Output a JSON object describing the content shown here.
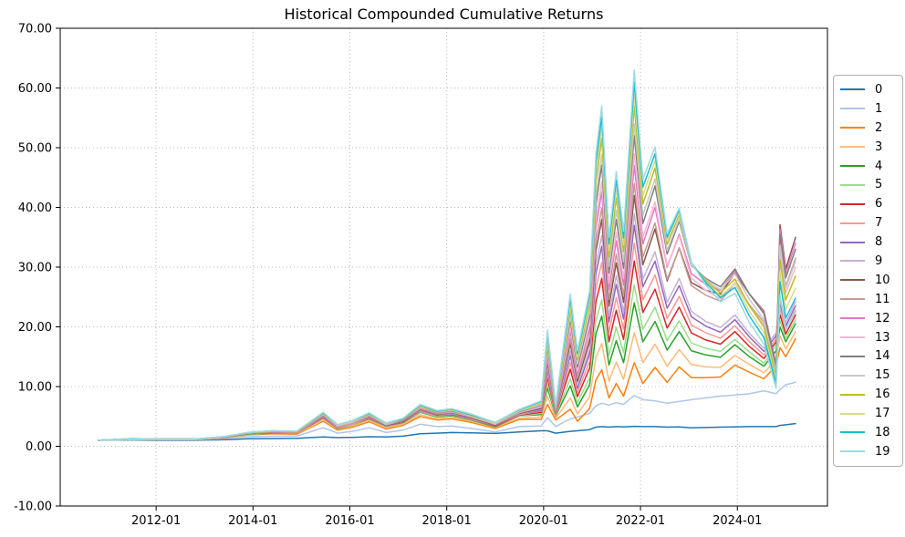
{
  "figure": {
    "background": "#ffffff"
  },
  "chart_data": {
    "type": "line",
    "title": "Historical Compounded Cumulative Returns",
    "xlabel": "",
    "ylabel": "",
    "grid": "dotted both axes",
    "legend_position": "right outside",
    "x_axis": {
      "range_years": [
        2010.02,
        2025.86
      ],
      "ticks_years": [
        2012.0,
        2014.0,
        2016.0,
        2018.0,
        2020.0,
        2022.0,
        2024.0
      ],
      "tick_labels": [
        "2012-01",
        "2014-01",
        "2016-01",
        "2018-01",
        "2020-01",
        "2022-01",
        "2024-01"
      ]
    },
    "y_axis": {
      "range": [
        -10,
        70
      ],
      "ticks": [
        -10,
        0,
        10,
        20,
        30,
        40,
        50,
        60,
        70
      ],
      "tick_labels": [
        "-10.00",
        "0.00",
        "10.00",
        "20.00",
        "30.00",
        "40.00",
        "50.00",
        "60.00",
        "70.00"
      ]
    },
    "x_labels": [
      "2010-10",
      "2011-07",
      "2012-01",
      "2012-10",
      "2013-05",
      "2013-11",
      "2014-05",
      "2014-11",
      "2015-06",
      "2015-10",
      "2016-01",
      "2016-05",
      "2016-10",
      "2017-02",
      "2017-06",
      "2017-10",
      "2018-02",
      "2018-07",
      "2019-01",
      "2019-07",
      "2019-12",
      "2020-02",
      "2020-04",
      "2020-07",
      "2020-09",
      "2020-12",
      "2021-02",
      "2021-03",
      "2021-05",
      "2021-07",
      "2021-08",
      "2021-11",
      "2022-01",
      "2022-04",
      "2022-07",
      "2022-10",
      "2023-01",
      "2023-05",
      "2023-08",
      "2023-12",
      "2024-04",
      "2024-07",
      "2024-10",
      "2024-11",
      "2025-01",
      "2025-03"
    ],
    "x": [
      2010.8,
      2011.5,
      2012.0,
      2012.8,
      2013.4,
      2013.9,
      2014.4,
      2014.9,
      2015.45,
      2015.75,
      2016.05,
      2016.4,
      2016.75,
      2017.1,
      2017.45,
      2017.8,
      2018.1,
      2018.5,
      2019.0,
      2019.5,
      2019.95,
      2020.08,
      2020.25,
      2020.55,
      2020.7,
      2020.95,
      2021.08,
      2021.2,
      2021.35,
      2021.5,
      2021.65,
      2021.87,
      2022.05,
      2022.3,
      2022.55,
      2022.8,
      2023.05,
      2023.35,
      2023.65,
      2023.95,
      2024.25,
      2024.55,
      2024.8,
      2024.88,
      2025.0,
      2025.2
    ],
    "series": [
      {
        "name": "0",
        "color": "#1f77b4",
        "values": [
          1.0,
          1.05,
          1.0,
          1.0,
          1.1,
          1.25,
          1.3,
          1.35,
          1.55,
          1.45,
          1.5,
          1.6,
          1.55,
          1.7,
          2.1,
          2.2,
          2.3,
          2.25,
          2.15,
          2.4,
          2.6,
          2.6,
          2.2,
          2.5,
          2.6,
          2.8,
          3.2,
          3.3,
          3.2,
          3.3,
          3.25,
          3.35,
          3.3,
          3.3,
          3.2,
          3.25,
          3.1,
          3.15,
          3.2,
          3.25,
          3.3,
          3.3,
          3.3,
          3.5,
          3.6,
          3.8
        ]
      },
      {
        "name": "1",
        "color": "#aec7e8",
        "values": [
          1.0,
          1.1,
          1.1,
          1.1,
          1.3,
          1.6,
          1.7,
          1.7,
          3.1,
          2.2,
          2.5,
          3.1,
          2.3,
          2.7,
          3.7,
          3.3,
          3.4,
          3.0,
          2.4,
          3.3,
          3.4,
          4.8,
          3.3,
          4.6,
          4.9,
          5.5,
          6.8,
          7.2,
          6.9,
          7.3,
          7.0,
          8.5,
          7.8,
          7.6,
          7.2,
          7.5,
          7.8,
          8.1,
          8.4,
          8.6,
          8.8,
          9.3,
          8.8,
          9.5,
          10.3,
          10.7
        ]
      },
      {
        "name": "2",
        "color": "#ff7f0e",
        "values": [
          1.0,
          1.2,
          1.1,
          1.1,
          1.4,
          1.9,
          2.1,
          2.0,
          4.2,
          2.7,
          3.2,
          4.1,
          2.9,
          3.5,
          5.0,
          4.4,
          4.6,
          4.0,
          3.0,
          4.5,
          4.5,
          7.0,
          4.4,
          6.2,
          4.2,
          6.3,
          11.1,
          12.8,
          8.1,
          10.5,
          8.4,
          14.0,
          10.5,
          13.2,
          10.7,
          13.3,
          11.5,
          11.5,
          11.6,
          13.6,
          12.4,
          11.3,
          13.5,
          16.5,
          15.0,
          18.0
        ]
      },
      {
        "name": "3",
        "color": "#ffbb78",
        "values": [
          1.0,
          1.2,
          1.1,
          1.1,
          1.4,
          1.9,
          2.2,
          2.1,
          4.4,
          2.9,
          3.4,
          4.3,
          3.1,
          3.7,
          5.3,
          4.6,
          4.8,
          4.2,
          3.2,
          4.7,
          4.9,
          8.4,
          4.7,
          8.1,
          5.4,
          8.3,
          14.9,
          17.2,
          10.9,
          14.1,
          11.2,
          19.0,
          14.0,
          17.1,
          13.4,
          16.2,
          13.7,
          13.3,
          13.2,
          15.2,
          13.7,
          12.3,
          14.5,
          18.5,
          16.3,
          19.2
        ]
      },
      {
        "name": "4",
        "color": "#2ca02c",
        "values": [
          1.0,
          1.2,
          1.2,
          1.2,
          1.5,
          2.0,
          2.2,
          2.2,
          4.7,
          3.0,
          3.6,
          4.6,
          3.3,
          3.9,
          5.7,
          4.9,
          5.1,
          4.4,
          3.3,
          5.1,
          5.3,
          9.8,
          5.1,
          10.1,
          6.6,
          10.3,
          18.8,
          21.8,
          13.6,
          17.7,
          14.0,
          24.0,
          17.5,
          20.9,
          16.1,
          19.2,
          16.0,
          15.3,
          14.9,
          17.0,
          15.0,
          13.4,
          16.0,
          20.0,
          17.5,
          20.5
        ]
      },
      {
        "name": "5",
        "color": "#98df8a",
        "values": [
          1.0,
          1.2,
          1.2,
          1.2,
          1.5,
          2.0,
          2.3,
          2.2,
          4.7,
          3.1,
          3.6,
          4.7,
          3.3,
          3.9,
          5.8,
          5.0,
          5.2,
          4.5,
          3.4,
          5.1,
          5.5,
          10.5,
          5.2,
          11.3,
          7.3,
          11.5,
          21.1,
          24.5,
          15.2,
          19.9,
          15.7,
          27.0,
          19.6,
          23.3,
          17.7,
          21.0,
          17.3,
          16.4,
          15.9,
          17.9,
          15.8,
          13.9,
          17.0,
          21.0,
          18.1,
          21.2
        ]
      },
      {
        "name": "6",
        "color": "#d62728",
        "values": [
          1.0,
          1.2,
          1.2,
          1.2,
          1.5,
          2.1,
          2.3,
          2.2,
          4.8,
          3.1,
          3.7,
          4.7,
          3.4,
          4.0,
          5.9,
          5.1,
          5.3,
          4.6,
          3.4,
          5.2,
          5.7,
          11.5,
          5.4,
          12.9,
          8.3,
          13.1,
          24.2,
          28.1,
          17.5,
          22.8,
          17.9,
          31.0,
          22.4,
          26.3,
          19.8,
          23.3,
          19.0,
          17.8,
          17.1,
          19.2,
          16.7,
          14.7,
          17.5,
          22.0,
          18.8,
          22.0
        ]
      },
      {
        "name": "7",
        "color": "#ff9896",
        "values": [
          1.0,
          1.2,
          1.2,
          1.2,
          1.5,
          2.1,
          2.3,
          2.2,
          4.9,
          3.1,
          3.7,
          4.8,
          3.4,
          4.1,
          5.9,
          5.1,
          5.4,
          4.6,
          3.5,
          5.3,
          5.9,
          12.2,
          5.5,
          14.0,
          9.0,
          14.3,
          26.5,
          30.8,
          19.1,
          24.9,
          19.6,
          34.0,
          24.5,
          28.7,
          21.4,
          25.1,
          20.3,
          19.0,
          18.1,
          20.2,
          17.5,
          15.3,
          18.0,
          23.0,
          19.5,
          22.8
        ]
      },
      {
        "name": "8",
        "color": "#9467bd",
        "values": [
          1.0,
          1.2,
          1.2,
          1.2,
          1.5,
          2.1,
          2.3,
          2.3,
          4.9,
          3.2,
          3.8,
          4.9,
          3.4,
          4.1,
          6.0,
          5.2,
          5.4,
          4.7,
          3.5,
          5.4,
          6.0,
          12.9,
          5.6,
          15.2,
          9.7,
          15.5,
          28.9,
          33.5,
          20.8,
          27.1,
          21.3,
          37.0,
          26.7,
          31.0,
          23.1,
          26.9,
          21.7,
          20.1,
          19.1,
          21.2,
          18.3,
          15.9,
          18.5,
          24.0,
          20.1,
          23.5
        ]
      },
      {
        "name": "9",
        "color": "#c5b0d5",
        "values": [
          1.0,
          1.2,
          1.2,
          1.2,
          1.5,
          2.1,
          2.4,
          2.3,
          5.0,
          3.2,
          3.8,
          4.9,
          3.5,
          4.2,
          6.1,
          5.3,
          5.5,
          4.8,
          3.6,
          5.4,
          6.2,
          13.5,
          5.8,
          16.0,
          10.2,
          16.3,
          30.4,
          35.3,
          21.8,
          28.6,
          22.5,
          39.0,
          28.0,
          32.6,
          24.1,
          28.1,
          22.6,
          20.9,
          19.9,
          22.0,
          18.9,
          16.4,
          19.0,
          24.8,
          20.7,
          24.2
        ]
      },
      {
        "name": "10",
        "color": "#8c564b",
        "values": [
          1.0,
          1.2,
          1.2,
          1.2,
          1.5,
          2.1,
          2.4,
          2.3,
          5.1,
          3.3,
          3.9,
          5.0,
          3.5,
          4.2,
          6.2,
          5.3,
          5.6,
          4.8,
          3.6,
          5.5,
          6.3,
          14.2,
          5.9,
          17.2,
          10.9,
          17.5,
          32.7,
          38.0,
          23.5,
          30.7,
          24.1,
          42.0,
          30.4,
          36.4,
          27.7,
          33.2,
          27.4,
          26.1,
          25.5,
          29.0,
          25.5,
          22.6,
          13.6,
          37.1,
          29.7,
          35.0
        ]
      },
      {
        "name": "11",
        "color": "#c49c94",
        "values": [
          1.0,
          1.2,
          1.2,
          1.2,
          1.5,
          2.2,
          2.4,
          2.3,
          5.2,
          3.3,
          3.9,
          5.1,
          3.6,
          4.3,
          6.3,
          5.4,
          5.7,
          4.9,
          3.7,
          5.6,
          6.5,
          14.7,
          6.0,
          18.0,
          11.4,
          18.4,
          34.3,
          39.9,
          24.6,
          32.2,
          25.3,
          44.0,
          31.7,
          37.4,
          28.0,
          33.1,
          26.9,
          25.3,
          24.3,
          27.3,
          23.7,
          20.8,
          12.4,
          33.7,
          26.8,
          31.5
        ]
      },
      {
        "name": "12",
        "color": "#e377c2",
        "values": [
          1.0,
          1.2,
          1.2,
          1.2,
          1.5,
          2.2,
          2.4,
          2.3,
          5.2,
          3.3,
          4.0,
          5.1,
          3.6,
          4.3,
          6.4,
          5.5,
          5.8,
          5.0,
          3.7,
          5.7,
          6.6,
          15.4,
          6.1,
          19.2,
          12.1,
          19.6,
          36.6,
          42.6,
          26.2,
          34.4,
          27.0,
          47.0,
          33.9,
          40.0,
          30.0,
          35.5,
          28.9,
          27.1,
          26.1,
          29.4,
          25.5,
          22.4,
          13.3,
          36.3,
          29.0,
          34.0
        ]
      },
      {
        "name": "13",
        "color": "#f7b6d2",
        "values": [
          1.0,
          1.2,
          1.2,
          1.2,
          1.6,
          2.2,
          2.5,
          2.4,
          5.3,
          3.4,
          4.0,
          5.2,
          3.6,
          4.4,
          6.5,
          5.6,
          5.8,
          5.0,
          3.7,
          5.7,
          6.7,
          15.9,
          6.2,
          20.0,
          12.6,
          20.4,
          38.2,
          44.3,
          27.3,
          35.8,
          28.1,
          49.0,
          35.1,
          40.9,
          30.2,
          35.2,
          28.2,
          26.1,
          24.7,
          27.4,
          23.5,
          20.3,
          12.0,
          32.3,
          25.7,
          30.0
        ]
      },
      {
        "name": "14",
        "color": "#7f7f7f",
        "values": [
          1.0,
          1.2,
          1.2,
          1.2,
          1.6,
          2.2,
          2.5,
          2.4,
          5.4,
          3.4,
          4.1,
          5.3,
          3.7,
          4.4,
          6.6,
          5.6,
          5.9,
          5.1,
          3.8,
          5.8,
          6.9,
          16.7,
          6.3,
          21.2,
          13.3,
          21.6,
          40.5,
          47.1,
          29.0,
          38.0,
          29.8,
          52.0,
          37.3,
          43.6,
          32.2,
          37.7,
          30.3,
          28.1,
          26.7,
          29.7,
          25.5,
          22.2,
          13.1,
          35.5,
          28.2,
          33.0
        ]
      },
      {
        "name": "15",
        "color": "#c7c7c7",
        "values": [
          1.0,
          1.2,
          1.2,
          1.2,
          1.6,
          2.2,
          2.5,
          2.4,
          5.4,
          3.4,
          4.1,
          5.3,
          3.7,
          4.5,
          6.6,
          5.7,
          6.0,
          5.1,
          3.8,
          5.9,
          7.0,
          17.2,
          6.4,
          21.9,
          13.8,
          22.4,
          42.0,
          48.9,
          30.1,
          39.5,
          30.9,
          54.0,
          38.7,
          44.8,
          32.8,
          38.1,
          30.4,
          27.9,
          26.2,
          28.9,
          24.6,
          21.2,
          12.4,
          33.6,
          26.5,
          31.0
        ]
      },
      {
        "name": "16",
        "color": "#bcbd22",
        "values": [
          1.0,
          1.2,
          1.2,
          1.2,
          1.6,
          2.2,
          2.5,
          2.4,
          5.5,
          3.5,
          4.2,
          5.4,
          3.8,
          4.5,
          6.7,
          5.8,
          6.1,
          5.2,
          3.9,
          6.0,
          7.2,
          17.9,
          6.6,
          23.1,
          14.5,
          23.6,
          44.3,
          51.6,
          31.7,
          41.6,
          32.6,
          57.0,
          40.6,
          46.6,
          33.8,
          38.8,
          30.6,
          27.7,
          25.7,
          28.0,
          23.5,
          20.0,
          11.6,
          31.2,
          24.5,
          28.5
        ]
      },
      {
        "name": "17",
        "color": "#dbdb8d",
        "values": [
          1.0,
          1.2,
          1.2,
          1.2,
          1.6,
          2.3,
          2.6,
          2.5,
          5.6,
          3.5,
          4.2,
          5.5,
          3.8,
          4.6,
          6.8,
          5.9,
          6.1,
          5.3,
          3.9,
          6.0,
          7.3,
          18.5,
          6.7,
          23.9,
          15.0,
          24.4,
          45.9,
          53.4,
          32.8,
          43.1,
          33.7,
          59.0,
          42.0,
          47.8,
          34.4,
          39.1,
          30.6,
          27.5,
          25.2,
          27.2,
          22.6,
          19.0,
          11.0,
          29.2,
          22.9,
          26.5
        ]
      },
      {
        "name": "18",
        "color": "#17becf",
        "values": [
          1.0,
          1.3,
          1.2,
          1.2,
          1.6,
          2.3,
          2.6,
          2.5,
          5.6,
          3.6,
          4.3,
          5.5,
          3.9,
          4.6,
          6.9,
          5.9,
          6.2,
          5.3,
          4.0,
          6.1,
          7.5,
          19.0,
          6.8,
          24.7,
          15.5,
          25.2,
          47.5,
          55.2,
          33.9,
          44.6,
          34.9,
          61.0,
          43.4,
          49.0,
          35.0,
          39.6,
          30.8,
          27.4,
          24.9,
          26.6,
          21.8,
          18.2,
          10.5,
          27.6,
          21.5,
          24.8
        ]
      },
      {
        "name": "19",
        "color": "#9edae5",
        "values": [
          1.0,
          1.3,
          1.2,
          1.2,
          1.6,
          2.3,
          2.6,
          2.5,
          5.7,
          3.6,
          4.3,
          5.6,
          3.9,
          4.7,
          7.0,
          6.0,
          6.3,
          5.4,
          4.0,
          6.2,
          7.6,
          19.5,
          6.9,
          25.5,
          16.0,
          26.0,
          49.0,
          57.0,
          35.0,
          46.0,
          36.0,
          63.0,
          44.7,
          50.1,
          35.6,
          39.9,
          30.8,
          27.0,
          24.2,
          25.6,
          20.7,
          17.1,
          9.7,
          25.3,
          19.6,
          22.5
        ]
      }
    ]
  },
  "style": {
    "grid_color": "#b8b8b8",
    "spine_color": "#000000",
    "tick_label_color": "#000000",
    "title_color": "#000000"
  }
}
